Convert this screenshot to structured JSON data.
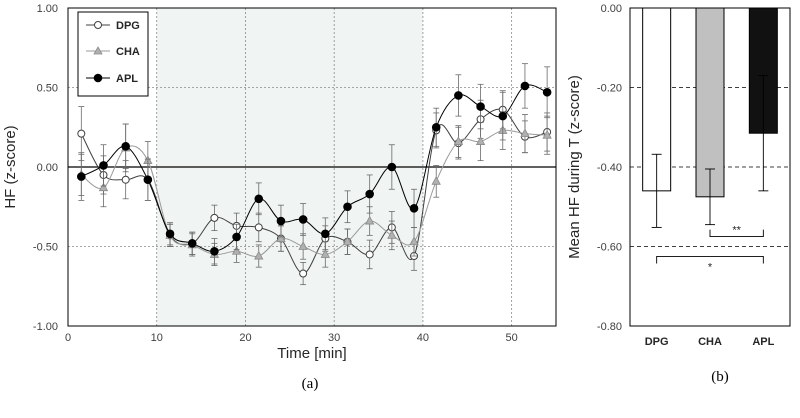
{
  "chart_data": [
    {
      "type": "line",
      "panel_label": "(a)",
      "xlabel": "Time [min]",
      "ylabel": "HF (z-score)",
      "xlim": [
        0,
        55
      ],
      "ylim": [
        -1.0,
        1.0
      ],
      "x_ticks": [
        "0",
        "10",
        "20",
        "30",
        "40",
        "50"
      ],
      "y_ticks": [
        "1.00",
        "0.50",
        "0.00",
        "-0.50",
        "-1.00"
      ],
      "shaded_region": [
        10,
        40
      ],
      "series": [
        {
          "name": "DPG",
          "marker": "open-circle",
          "color": "#404040",
          "x": [
            1.5,
            4,
            6.5,
            9,
            11.5,
            14,
            16.5,
            19,
            21.5,
            24,
            26.5,
            29,
            31.5,
            34,
            36.5,
            39,
            41.5,
            44,
            46.5,
            49,
            51.5,
            54
          ],
          "y": [
            0.21,
            -0.05,
            -0.08,
            -0.08,
            -0.43,
            -0.48,
            -0.32,
            -0.37,
            -0.38,
            -0.45,
            -0.67,
            -0.45,
            -0.47,
            -0.55,
            -0.38,
            -0.56,
            0.23,
            0.15,
            0.3,
            0.36,
            0.19,
            0.22
          ],
          "err": [
            0.17,
            0.12,
            0.12,
            0.13,
            0.07,
            0.07,
            0.08,
            0.08,
            0.09,
            0.08,
            0.07,
            0.08,
            0.08,
            0.09,
            0.1,
            0.09,
            0.11,
            0.1,
            0.12,
            0.12,
            0.1,
            0.12
          ]
        },
        {
          "name": "CHA",
          "marker": "triangle",
          "color": "#9a9a9a",
          "x": [
            1.5,
            4,
            6.5,
            9,
            11.5,
            14,
            16.5,
            19,
            21.5,
            24,
            26.5,
            29,
            31.5,
            34,
            36.5,
            39,
            41.5,
            44,
            46.5,
            49,
            51.5,
            54
          ],
          "y": [
            -0.05,
            -0.13,
            0.12,
            0.04,
            -0.43,
            -0.49,
            -0.55,
            -0.53,
            -0.56,
            -0.45,
            -0.5,
            -0.55,
            -0.47,
            -0.34,
            -0.43,
            -0.47,
            -0.09,
            0.16,
            0.16,
            0.23,
            0.21,
            0.2
          ],
          "err": [
            0.13,
            0.12,
            0.15,
            0.12,
            0.07,
            0.07,
            0.07,
            0.07,
            0.07,
            0.08,
            0.08,
            0.08,
            0.08,
            0.09,
            0.09,
            0.09,
            0.1,
            0.1,
            0.12,
            0.12,
            0.12,
            0.12
          ]
        },
        {
          "name": "APL",
          "marker": "filled-circle",
          "color": "#000000",
          "x": [
            1.5,
            4,
            6.5,
            9,
            11.5,
            14,
            16.5,
            19,
            21.5,
            24,
            26.5,
            29,
            31.5,
            34,
            36.5,
            39,
            41.5,
            44,
            46.5,
            49,
            51.5,
            54
          ],
          "y": [
            -0.06,
            0.01,
            0.13,
            -0.08,
            -0.42,
            -0.48,
            -0.53,
            -0.44,
            -0.2,
            -0.34,
            -0.33,
            -0.42,
            -0.25,
            -0.17,
            0.0,
            -0.26,
            0.25,
            0.45,
            0.38,
            0.32,
            0.51,
            0.47
          ],
          "err": [
            0.15,
            0.13,
            0.14,
            0.13,
            0.07,
            0.07,
            0.08,
            0.08,
            0.1,
            0.1,
            0.1,
            0.1,
            0.1,
            0.12,
            0.14,
            0.12,
            0.12,
            0.13,
            0.14,
            0.15,
            0.14,
            0.16
          ]
        }
      ]
    },
    {
      "type": "bar",
      "panel_label": "(b)",
      "xlabel": "",
      "ylabel": "Mean HF  during T (z-score)",
      "ylim": [
        -0.8,
        0.0
      ],
      "y_ticks": [
        "0.00",
        "-0.20",
        "-0.40",
        "-0.60",
        "-0.80"
      ],
      "categories": [
        "DPG",
        "CHA",
        "APL"
      ],
      "values": [
        -0.46,
        -0.475,
        -0.315
      ],
      "err": [
        0.092,
        0.07,
        0.145
      ],
      "colors": [
        "#ffffff",
        "#c0c0c0",
        "#111111"
      ],
      "significance": [
        {
          "pair": [
            "CHA",
            "APL"
          ],
          "label": "**"
        },
        {
          "pair": [
            "DPG",
            "APL"
          ],
          "label": "*"
        }
      ]
    }
  ]
}
